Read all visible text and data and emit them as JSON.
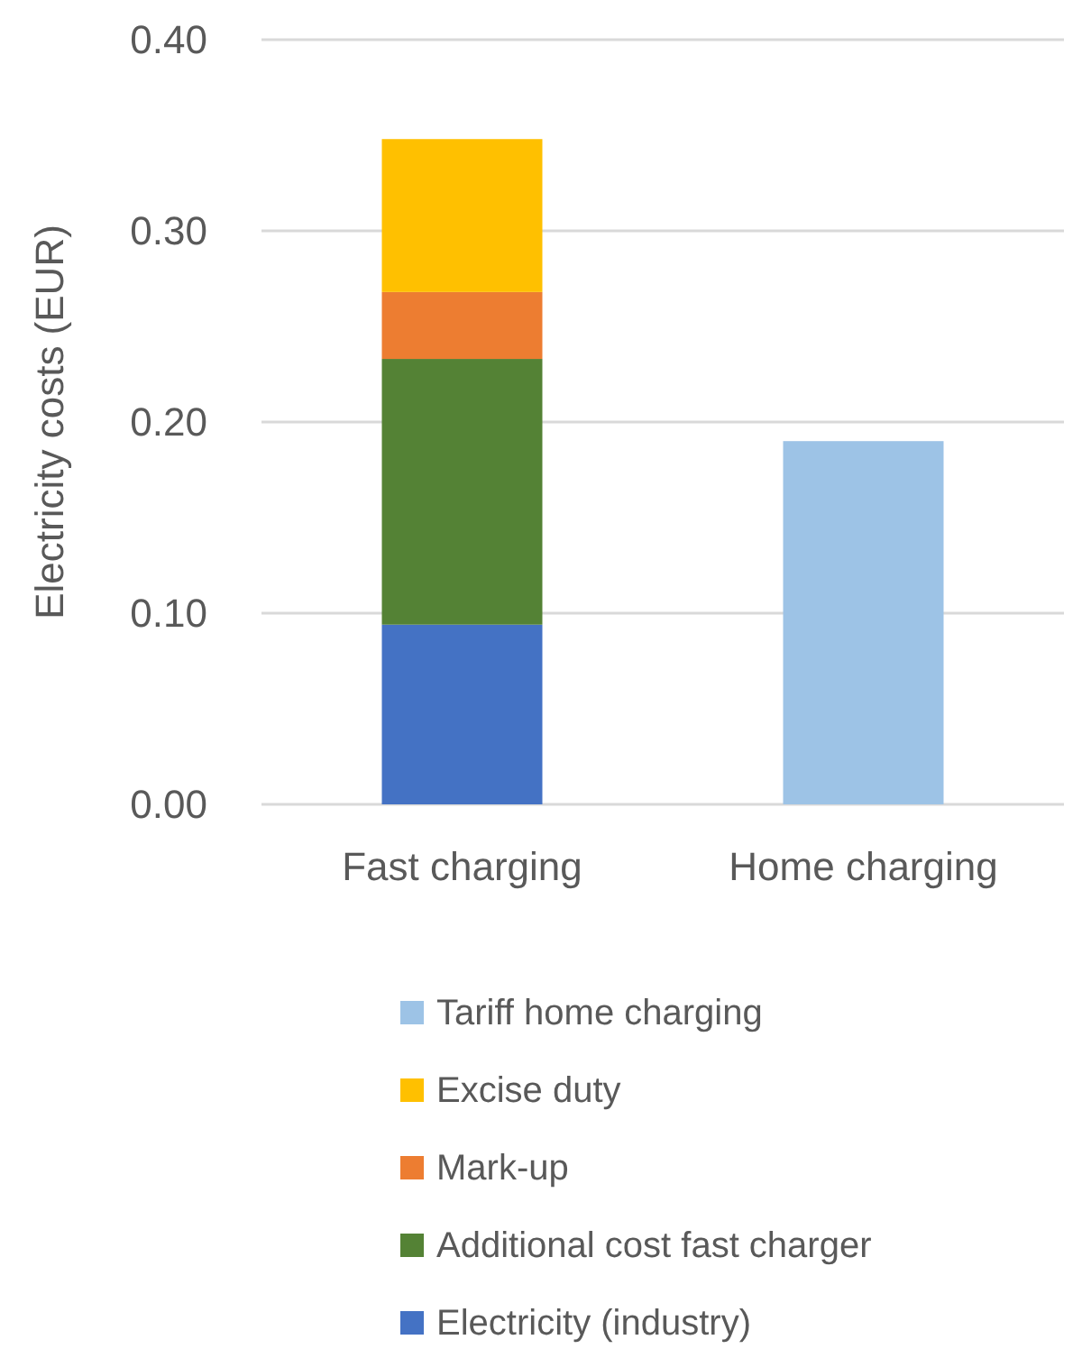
{
  "chart_data": {
    "type": "bar",
    "stacked": true,
    "ylabel": "Electricity costs (EUR)",
    "categories": [
      "Fast charging",
      "Home charging"
    ],
    "series": [
      {
        "name": "Electricity (industry)",
        "color": "#4472c4",
        "values": [
          0.094,
          null
        ]
      },
      {
        "name": "Additional cost fast charger",
        "color": "#548235",
        "values": [
          0.139,
          null
        ]
      },
      {
        "name": "Mark-up",
        "color": "#ed7d31",
        "values": [
          0.035,
          null
        ]
      },
      {
        "name": "Excise duty",
        "color": "#ffc000",
        "values": [
          0.08,
          null
        ]
      },
      {
        "name": "Tariff home charging",
        "color": "#9dc3e6",
        "values": [
          null,
          0.19
        ]
      }
    ],
    "ylim": [
      0,
      0.4
    ],
    "yticks": [
      {
        "value": 0,
        "label": "0.00"
      },
      {
        "value": 0.1,
        "label": "0.10"
      },
      {
        "value": 0.2,
        "label": "0.20"
      },
      {
        "value": 0.3,
        "label": "0.30"
      },
      {
        "value": 0.4,
        "label": "0.40"
      }
    ],
    "grid": "y",
    "legend": "bottom"
  }
}
